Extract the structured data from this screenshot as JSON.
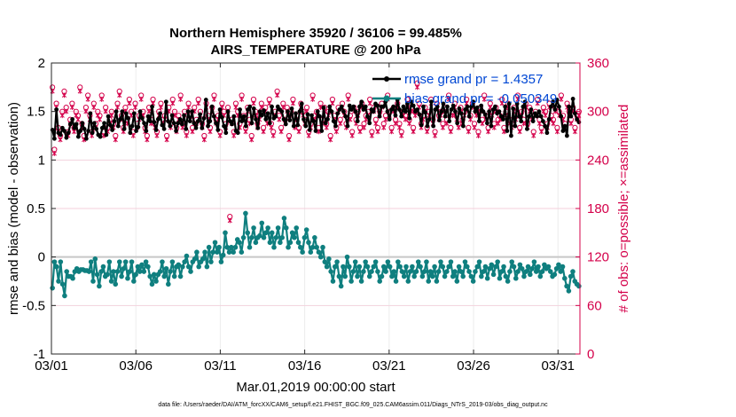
{
  "chart_data": {
    "type": "line",
    "title_line1": "Northern Hemisphere 35920 / 36106 = 99.485%",
    "title_line2": "AIRS_TEMPERATURE @ 200 hPa",
    "ylabel_left": "rmse and bias (model - observation)",
    "ylabel_right": "# of obs: o=possible; ×=assimilated",
    "xlabel": "Mar.01,2019 00:00:00 start",
    "footer": "data file: /Users/raeder/DAI/ATM_forcXX/CAM6_setup/f.e21.FHIST_BGC.f09_025.CAM6assim.011/Diags_NTrS_2019-03/obs_diag_output.nc",
    "xlim": [
      0,
      31.3
    ],
    "ylim_left": [
      -1,
      2
    ],
    "ylim_right": [
      0,
      360
    ],
    "x_ticks": [
      0,
      5,
      10,
      15,
      20,
      25,
      30
    ],
    "x_tick_labels": [
      "03/01",
      "03/06",
      "03/11",
      "03/16",
      "03/21",
      "03/26",
      "03/31"
    ],
    "y_left_ticks": [
      -1,
      -0.5,
      0,
      0.5,
      1,
      1.5,
      2
    ],
    "y_left_tick_labels": [
      "-1",
      "-0.5",
      "0",
      "0.5",
      "1",
      "1.5",
      "2"
    ],
    "y_right_ticks": [
      0,
      60,
      120,
      180,
      240,
      300,
      360
    ],
    "y_right_tick_labels": [
      "0",
      "60",
      "120",
      "180",
      "240",
      "300",
      "360"
    ],
    "legend": [
      "rmse grand pr = 1.4357",
      "bias grand pr = -0.050349"
    ],
    "colors": {
      "rmse": "#000000",
      "bias": "#0f7f7f",
      "obs": "#d4004a",
      "zero_line": "#c8c8c8",
      "legend_text": "#0047d4",
      "right_axis": "#d4004a"
    },
    "series": [
      {
        "name": "rmse",
        "values": [
          1.31,
          1.22,
          1.52,
          1.28,
          1.26,
          1.33,
          1.3,
          1.23,
          1.28,
          1.37,
          1.42,
          1.33,
          1.37,
          1.24,
          1.3,
          1.38,
          1.32,
          1.22,
          1.3,
          1.48,
          1.28,
          1.38,
          1.32,
          1.26,
          1.24,
          1.33,
          1.38,
          1.26,
          1.45,
          1.36,
          1.31,
          1.4,
          1.5,
          1.35,
          1.42,
          1.5,
          1.32,
          1.48,
          1.43,
          1.28,
          1.35,
          1.48,
          1.3,
          1.34,
          1.5,
          1.43,
          1.38,
          1.3,
          1.45,
          1.4,
          1.55,
          1.39,
          1.31,
          1.42,
          1.48,
          1.36,
          1.32,
          1.6,
          1.4,
          1.35,
          1.46,
          1.38,
          1.3,
          1.38,
          1.42,
          1.37,
          1.46,
          1.32,
          1.5,
          1.4,
          1.5,
          1.38,
          1.33,
          1.4,
          1.47,
          1.33,
          1.43,
          1.62,
          1.35,
          1.4,
          1.55,
          1.45,
          1.38,
          1.31,
          1.52,
          1.44,
          1.35,
          1.28,
          1.5,
          1.4,
          1.37,
          1.45,
          1.3,
          1.28,
          1.52,
          1.4,
          1.45,
          1.35,
          1.52,
          1.55,
          1.38,
          1.53,
          1.42,
          1.33,
          1.5,
          1.46,
          1.51,
          1.42,
          1.48,
          1.38,
          1.55,
          1.43,
          1.45,
          1.55,
          1.52,
          1.5,
          1.42,
          1.37,
          1.5,
          1.41,
          1.53,
          1.35,
          1.48,
          1.36,
          1.5,
          1.58,
          1.42,
          1.35,
          1.47,
          1.31,
          1.46,
          1.4,
          1.3,
          1.5,
          1.45,
          1.3,
          1.54,
          1.38,
          1.42,
          1.55,
          1.5,
          1.4,
          1.35,
          1.48,
          1.52,
          1.55,
          1.5,
          1.45,
          1.35,
          1.56,
          1.52,
          1.55,
          1.5,
          1.4,
          1.55,
          1.6,
          1.52,
          1.55,
          1.45,
          1.38,
          1.52,
          1.5,
          1.58,
          1.56,
          1.45,
          1.55,
          1.55,
          1.6,
          1.5,
          1.42,
          1.52,
          1.55,
          1.46,
          1.62,
          1.52,
          1.45,
          1.55,
          1.5,
          1.58,
          1.43,
          1.6,
          1.56,
          1.5,
          1.52,
          1.47,
          1.36,
          1.55,
          1.49,
          1.35,
          1.42,
          1.6,
          1.35,
          1.52,
          1.55,
          1.41,
          1.5,
          1.58,
          1.45,
          1.55,
          1.4,
          1.52,
          1.56,
          1.5,
          1.38,
          1.53,
          1.48,
          1.35,
          1.52,
          1.55,
          1.45,
          1.55,
          1.6,
          1.5,
          1.54,
          1.4,
          1.56,
          1.5,
          1.47,
          1.38,
          1.5,
          1.35,
          1.52,
          1.55,
          1.48,
          1.5,
          1.45,
          1.42,
          1.55,
          1.3,
          1.58,
          1.25,
          1.53,
          1.35,
          1.58,
          1.45,
          1.4,
          1.55,
          1.6,
          1.32,
          1.45,
          1.52,
          1.4,
          1.48,
          1.45,
          1.5,
          1.45,
          1.4,
          1.35,
          1.28,
          1.42,
          1.55,
          1.6,
          1.52,
          1.62,
          1.55,
          1.45,
          1.3,
          1.35,
          1.25,
          1.55,
          1.45,
          1.63,
          1.48,
          1.42,
          1.39
        ]
      },
      {
        "name": "bias",
        "values": [
          -0.32,
          -0.05,
          -0.1,
          -0.25,
          -0.05,
          -0.28,
          -0.4,
          -0.15,
          -0.2,
          -0.2,
          -0.22,
          -0.15,
          -0.12,
          -0.15,
          -0.13,
          -0.13,
          -0.14,
          -0.14,
          -0.15,
          -0.05,
          -0.25,
          -0.02,
          -0.18,
          -0.3,
          -0.15,
          -0.1,
          -0.2,
          -0.18,
          -0.05,
          -0.25,
          -0.15,
          -0.28,
          -0.15,
          -0.05,
          -0.2,
          -0.12,
          -0.05,
          -0.22,
          -0.15,
          -0.05,
          -0.25,
          -0.18,
          -0.1,
          -0.15,
          -0.08,
          -0.15,
          -0.05,
          -0.1,
          -0.2,
          -0.28,
          -0.18,
          -0.25,
          -0.18,
          -0.15,
          -0.05,
          -0.2,
          -0.12,
          -0.28,
          -0.15,
          -0.05,
          -0.2,
          -0.1,
          -0.08,
          -0.2,
          -0.1,
          -0.05,
          0.01,
          -0.1,
          -0.15,
          -0.05,
          -0.02,
          0.05,
          -0.1,
          -0.05,
          -0.02,
          0.05,
          -0.1,
          0.1,
          -0.05,
          0.05,
          0.15,
          0.05,
          0.1,
          -0.05,
          0.02,
          0.25,
          0.1,
          0.05,
          0.1,
          0.05,
          0.1,
          0.18,
          0.15,
          0.05,
          0.2,
          0.45,
          0.25,
          0.1,
          0.2,
          0.3,
          0.15,
          0.2,
          0.22,
          0.35,
          0.2,
          0.25,
          0.3,
          0.15,
          0.25,
          0.1,
          0.2,
          0.3,
          0.15,
          0.2,
          0.4,
          0.3,
          0.1,
          0.15,
          0.25,
          0.2,
          0.3,
          0.15,
          0.1,
          0.05,
          0.2,
          0.28,
          0.15,
          0.05,
          0.1,
          0.2,
          0.1,
          0.05,
          0.0,
          0.1,
          -0.05,
          -0.1,
          -0.02,
          -0.15,
          -0.25,
          -0.1,
          -0.05,
          -0.2,
          -0.3,
          -0.1,
          -0.2,
          0.0,
          -0.1,
          -0.25,
          -0.15,
          -0.05,
          -0.2,
          -0.1,
          -0.25,
          -0.15,
          -0.05,
          -0.1,
          -0.2,
          -0.15,
          -0.1,
          -0.05,
          -0.15,
          -0.25,
          -0.2,
          -0.1,
          -0.15,
          -0.05,
          -0.1,
          -0.2,
          -0.15,
          -0.25,
          -0.05,
          -0.1,
          -0.15,
          -0.2,
          -0.1,
          -0.25,
          -0.15,
          -0.1,
          -0.2,
          -0.15,
          -0.05,
          -0.1,
          -0.2,
          -0.15,
          -0.05,
          -0.25,
          -0.15,
          -0.2,
          -0.1,
          -0.25,
          -0.15,
          -0.05,
          -0.1,
          -0.2,
          -0.15,
          -0.1,
          -0.05,
          -0.2,
          -0.15,
          -0.25,
          -0.1,
          -0.15,
          -0.2,
          -0.05,
          -0.1,
          -0.15,
          -0.2,
          -0.25,
          -0.15,
          -0.1,
          -0.05,
          -0.2,
          -0.15,
          -0.1,
          -0.22,
          -0.12,
          -0.08,
          -0.18,
          -0.1,
          -0.05,
          -0.22,
          -0.15,
          -0.1,
          -0.2,
          -0.25,
          -0.15,
          -0.05,
          -0.1,
          -0.22,
          -0.15,
          -0.08,
          -0.12,
          -0.2,
          -0.15,
          -0.1,
          -0.18,
          -0.12,
          -0.05,
          -0.15,
          -0.1,
          -0.2,
          -0.15,
          -0.08,
          -0.12,
          -0.1,
          -0.15,
          -0.2,
          -0.18,
          -0.12,
          -0.08,
          -0.15,
          -0.1,
          -0.22,
          -0.3,
          -0.35,
          -0.2,
          -0.15,
          -0.25,
          -0.28,
          -0.3
        ]
      },
      {
        "name": "obs_possible",
        "values": [
          330,
          253,
          310,
          280,
          270,
          300,
          325,
          305,
          275,
          290,
          310,
          280,
          300,
          295,
          330,
          285,
          270,
          305,
          320,
          295,
          275,
          310,
          285,
          300,
          295,
          320,
          275,
          305,
          280,
          290,
          300,
          285,
          270,
          310,
          325,
          295,
          280,
          305,
          290,
          315,
          300,
          275,
          310,
          285,
          295,
          320,
          300,
          280,
          270,
          305,
          290,
          315,
          285,
          275,
          300,
          310,
          290,
          295,
          270,
          305,
          285,
          315,
          300,
          280,
          295,
          320,
          285,
          300,
          275,
          310,
          295,
          280,
          305,
          290,
          315,
          300,
          285,
          270,
          310,
          295,
          280,
          305,
          320,
          290,
          295,
          275,
          310,
          300,
          285,
          305,
          170,
          290,
          275,
          310,
          300,
          285,
          320,
          295,
          280,
          305,
          290,
          270,
          315,
          300,
          285,
          295,
          310,
          280,
          305,
          290,
          315,
          285,
          275,
          300,
          325,
          295,
          280,
          310,
          290,
          305,
          270,
          300,
          315,
          285,
          295,
          280,
          310,
          300,
          290,
          305,
          275,
          285,
          320,
          295,
          300,
          280,
          310,
          290,
          305,
          285,
          300,
          270,
          315,
          295,
          280,
          305,
          290,
          310,
          300,
          285,
          320,
          295,
          275,
          305,
          290,
          300,
          280,
          310,
          285,
          295,
          300,
          315,
          275,
          305,
          290,
          280,
          300,
          310,
          285,
          295,
          320,
          300,
          280,
          305,
          290,
          310,
          285,
          275,
          300,
          295,
          315,
          290,
          305,
          280,
          300,
          335,
          310,
          285,
          295,
          305,
          280,
          300,
          315,
          290,
          275,
          310,
          295,
          300,
          285,
          305,
          290,
          320,
          280,
          300,
          310,
          295,
          285,
          305,
          290,
          300,
          315,
          280,
          295,
          310,
          285,
          300,
          275,
          305,
          290,
          320,
          295,
          280,
          310,
          300,
          285,
          305,
          290,
          295,
          315,
          280,
          300,
          310,
          290,
          285,
          305,
          295,
          320,
          280,
          300,
          290,
          310,
          285,
          305,
          295,
          275,
          300,
          315,
          290,
          280,
          305,
          300,
          285,
          310,
          295,
          290,
          305,
          280,
          300,
          320,
          295,
          285,
          310,
          300,
          290,
          305,
          280,
          295,
          300
        ]
      },
      {
        "name": "obs_assimilated",
        "values": [
          325,
          248,
          305,
          275,
          265,
          295,
          320,
          300,
          270,
          285,
          305,
          275,
          295,
          290,
          325,
          280,
          265,
          300,
          315,
          290,
          270,
          305,
          280,
          295,
          290,
          315,
          270,
          300,
          275,
          285,
          295,
          280,
          265,
          305,
          320,
          290,
          275,
          300,
          285,
          310,
          295,
          270,
          305,
          280,
          290,
          315,
          295,
          275,
          265,
          300,
          285,
          310,
          280,
          270,
          295,
          305,
          285,
          290,
          265,
          300,
          280,
          310,
          295,
          275,
          290,
          315,
          280,
          295,
          270,
          305,
          290,
          275,
          300,
          285,
          310,
          295,
          280,
          265,
          305,
          290,
          275,
          300,
          315,
          285,
          290,
          270,
          305,
          295,
          280,
          300,
          165,
          285,
          270,
          305,
          295,
          280,
          315,
          290,
          275,
          300,
          285,
          265,
          310,
          295,
          280,
          290,
          305,
          275,
          300,
          285,
          310,
          280,
          270,
          295,
          320,
          290,
          275,
          305,
          285,
          300,
          265,
          295,
          310,
          280,
          290,
          275,
          305,
          295,
          285,
          300,
          270,
          280,
          315,
          290,
          295,
          275,
          305,
          285,
          300,
          280,
          295,
          265,
          310,
          290,
          275,
          300,
          285,
          305,
          295,
          280,
          315,
          290,
          270,
          300,
          285,
          295,
          275,
          305,
          280,
          290,
          295,
          310,
          270,
          300,
          285,
          275,
          295,
          305,
          280,
          290,
          315,
          295,
          275,
          300,
          285,
          305,
          280,
          270,
          295,
          290,
          310,
          285,
          300,
          275,
          295,
          330,
          305,
          280,
          290,
          300,
          275,
          295,
          310,
          285,
          270,
          305,
          290,
          295,
          280,
          300,
          285,
          315,
          275,
          295,
          305,
          290,
          280,
          300,
          285,
          295,
          310,
          275,
          290,
          305,
          280,
          295,
          270,
          300,
          285,
          315,
          290,
          275,
          305,
          295,
          280,
          300,
          285,
          290,
          310,
          275,
          295,
          305,
          285,
          280,
          300,
          290,
          315,
          275,
          295,
          285,
          305,
          280,
          300,
          290,
          270,
          295,
          310,
          285,
          275,
          300,
          295,
          280,
          305,
          290,
          285,
          300,
          275,
          295,
          315,
          290,
          280,
          305,
          295,
          285,
          300,
          275,
          290,
          295
        ]
      }
    ]
  }
}
